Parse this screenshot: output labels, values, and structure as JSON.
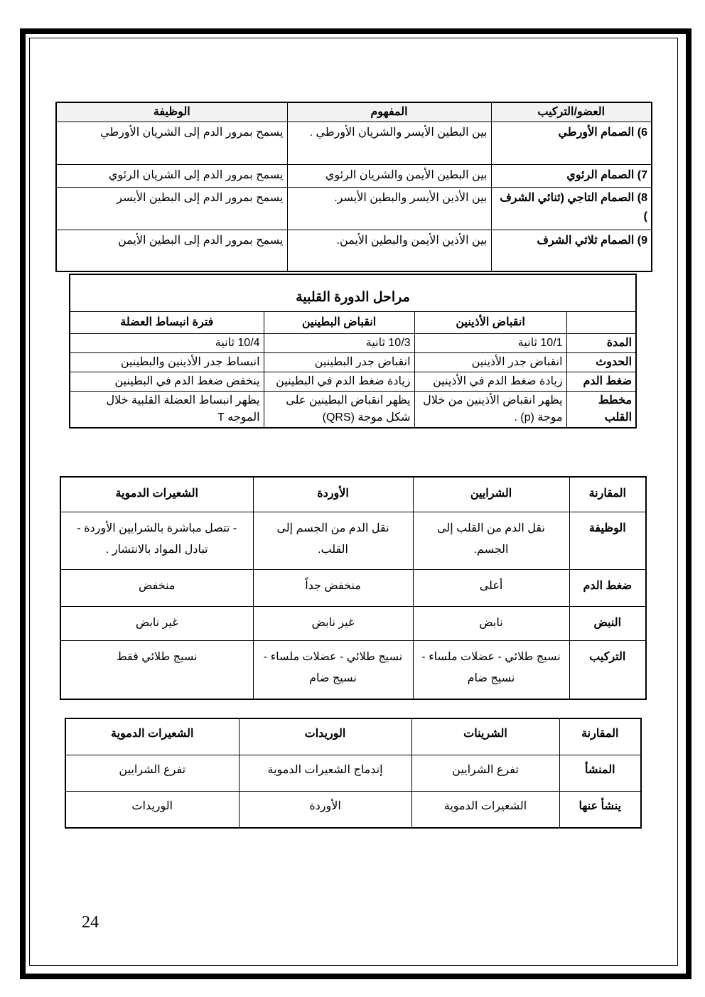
{
  "valves_table": {
    "headers": [
      "العضو/التركيب",
      "المفهوم",
      "الوظيفة"
    ],
    "rows": [
      [
        "6) الصمام الأورطي",
        "بين البطين الأيسر والشريان الأورطي .",
        "يسمح بمرور الدم إلى الشريان الأورطي"
      ],
      [
        "7) الصمام الرئوي",
        "بين البطين الأيمن والشريان الرئوي",
        "يسمح بمرور الدم إلى الشريان الرئوي"
      ],
      [
        "8) الصمام التاجي (ثنائي الشرف )",
        "بين الأذين الأيسر والبطين الأيسر.",
        "يسمح بمرور الدم إلى البطين الأيسر"
      ],
      [
        "9) الصمام ثلاثي الشرف",
        "بين الأذين الأيمن والبطين الأيمن.",
        "يسمح بمرور الدم إلى البطين الأيمن"
      ]
    ]
  },
  "cycle_table": {
    "title": "مراحل الدورة القلبية",
    "headers": [
      "",
      "انقباض الأذينين",
      "انقباض البطينين",
      "فترة انبساط العضلة"
    ],
    "rows": [
      [
        "المدة",
        "10/1 ثانية",
        "10/3 ثانية",
        "10/4 ثانية"
      ],
      [
        "الحدوث",
        "انقباض جدر الأذينين",
        "انقباض جدر البطينين",
        "انبساط جدر الأذينين والبطينين"
      ],
      [
        "ضغط الدم",
        "زيادة ضغط الدم في الأذينين",
        "زيادة ضغط الدم في البطينين",
        "ينخفض ضغط الدم في البطينين"
      ],
      [
        "مخطط القلب",
        "يظهر انقباض الأذينين من خلال موجة (p) .",
        "يظهر انقباض البطينين على شكل موجة (QRS)",
        "يظهر انبساط العضلة القلبية خلال الموجه T"
      ]
    ]
  },
  "vessels_table": {
    "headers": [
      "المقارنة",
      "الشرايين",
      "الأوردة",
      "الشعيرات الدموية"
    ],
    "rows": [
      [
        "الوظيفة",
        "نقل الدم من القلب إلى الجسم.",
        "نقل الدم من الجسم إلى القلب.",
        "- تتصل مباشرة بالشرايين الأوردة - تبادل المواد بالانتشار ."
      ],
      [
        "ضغط الدم",
        "أعلى",
        "منخفض جداً",
        "منخفض"
      ],
      [
        "النبض",
        "نابض",
        "غير نابض",
        "غير نابض"
      ],
      [
        "التركيب",
        "نسيج طلائي - عضلات ملساء - نسيج ضام",
        "نسيج طلائي - عضلات ملساء - نسيج ضام",
        "نسيج طلائي فقط"
      ]
    ]
  },
  "small_vessels_table": {
    "headers": [
      "المقارنة",
      "الشرينات",
      "الوريدات",
      "الشعيرات الدموية"
    ],
    "rows": [
      [
        "المنشأ",
        "تفرع الشرايين",
        "إندماج الشعيرات الدموية",
        "تفرع الشرايين"
      ],
      [
        "ينشأ عنها",
        "الشعيرات الدموية",
        "الأوردة",
        "الوريدات"
      ]
    ]
  },
  "page_number": "24"
}
